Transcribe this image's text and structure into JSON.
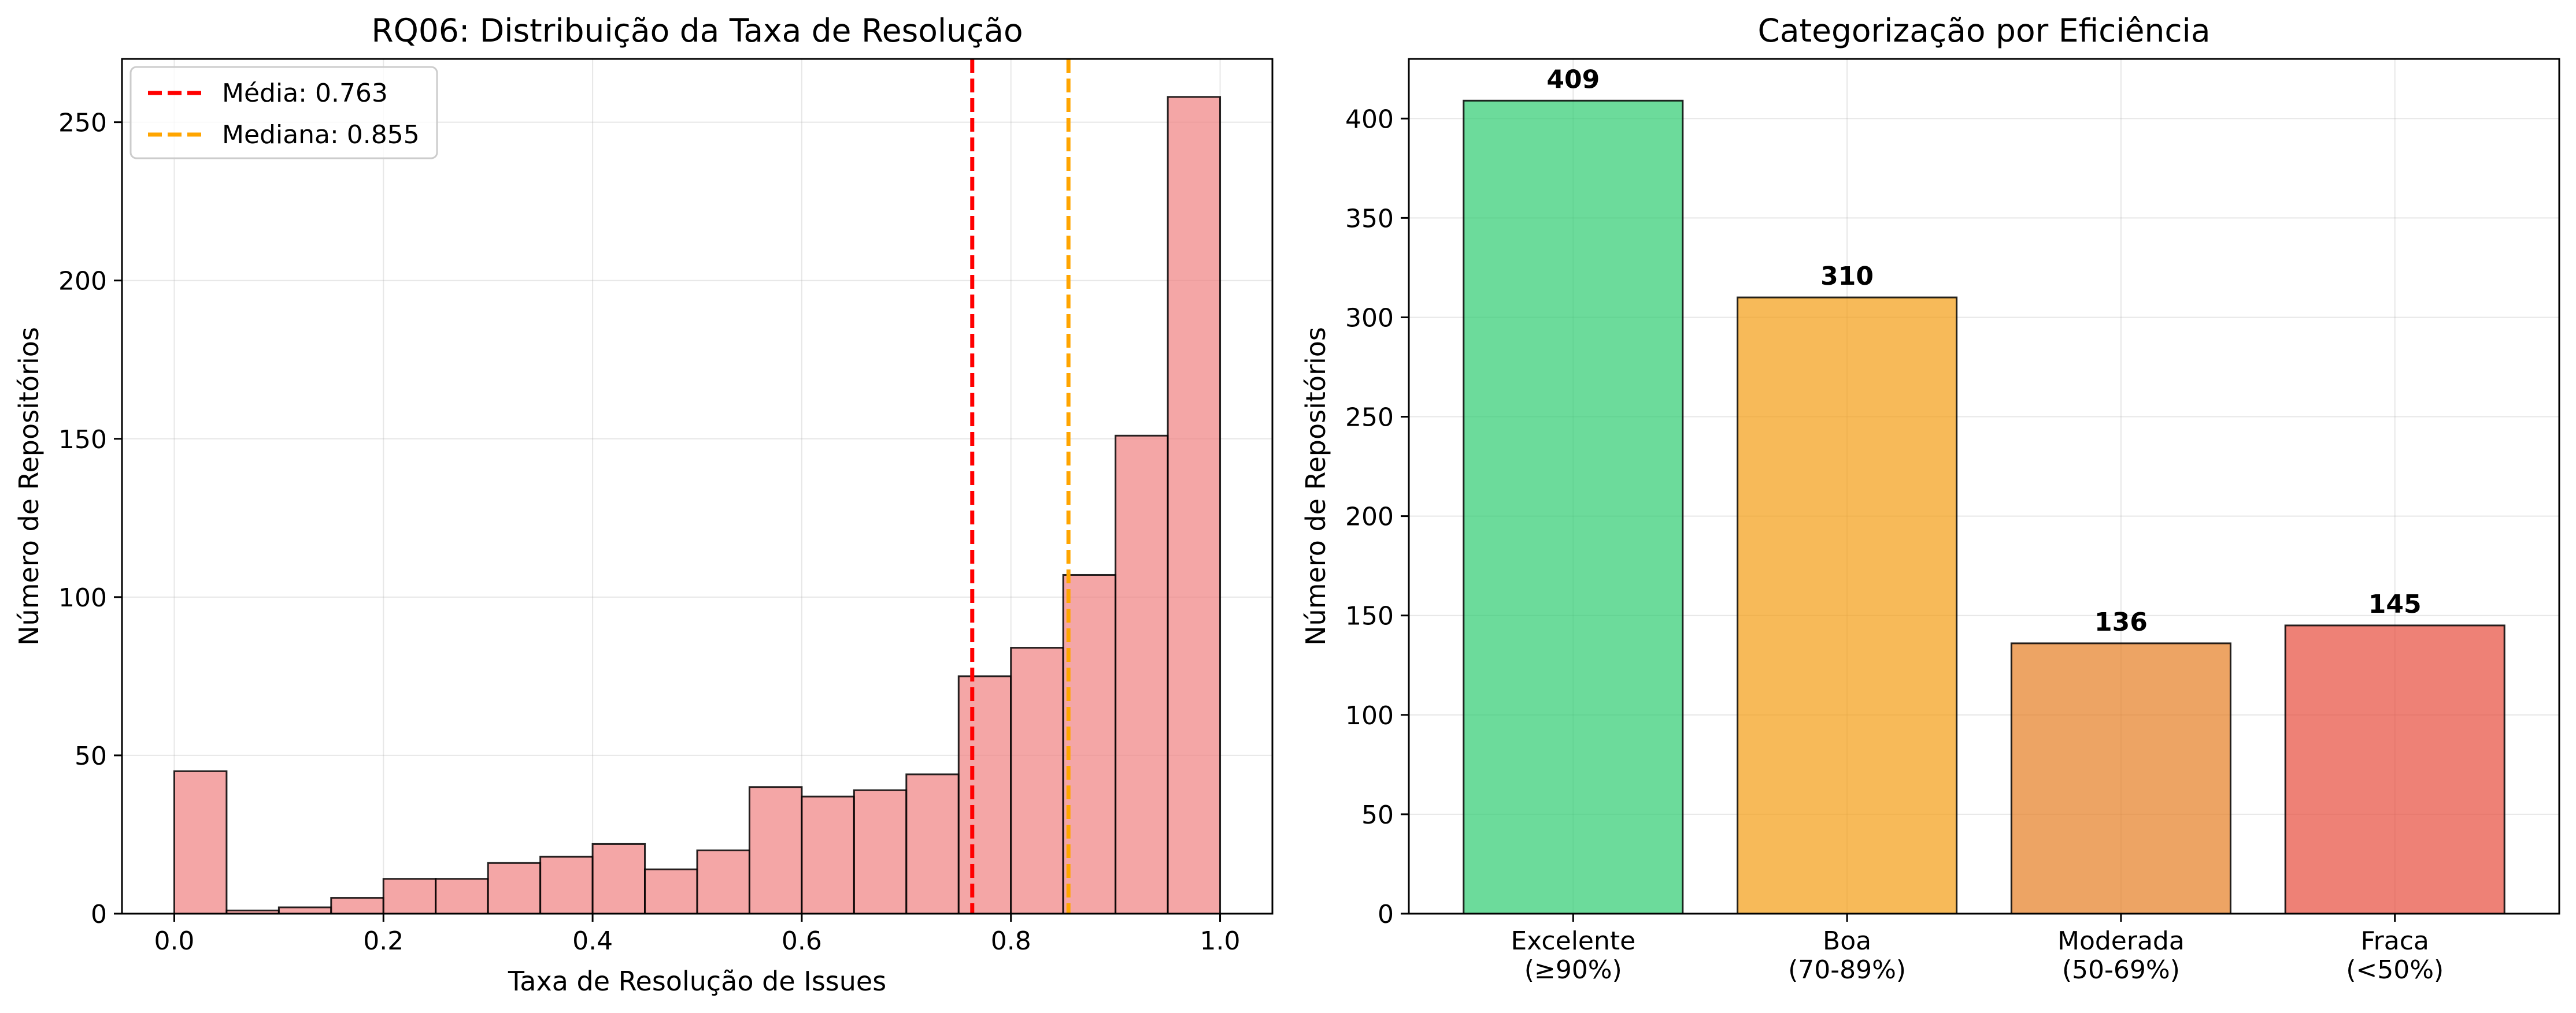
{
  "chart_data": [
    {
      "type": "bar",
      "subtype": "histogram",
      "title": "RQ06: Distribuição da Taxa de Resolução",
      "xlabel": "Taxa de Resolução de Issues",
      "ylabel": "Número de Repositórios",
      "xlim": [
        -0.05,
        1.05
      ],
      "ylim": [
        0,
        270
      ],
      "xticks": [
        "0.0",
        "0.2",
        "0.4",
        "0.6",
        "0.8",
        "1.0"
      ],
      "yticks": [
        "0",
        "50",
        "100",
        "150",
        "200",
        "250"
      ],
      "bin_edges": [
        0.0,
        0.05,
        0.1,
        0.15,
        0.2,
        0.25,
        0.3,
        0.35,
        0.4,
        0.45,
        0.5,
        0.55,
        0.6,
        0.65,
        0.7,
        0.75,
        0.8,
        0.85,
        0.9,
        0.95,
        1.0
      ],
      "values": [
        45,
        1,
        2,
        5,
        11,
        11,
        16,
        18,
        22,
        14,
        20,
        40,
        37,
        39,
        44,
        75,
        84,
        107,
        151,
        258
      ],
      "bar_color": "#f08080",
      "grid": true,
      "legend_position": "top-left",
      "reference_lines": [
        {
          "label": "Média: 0.763",
          "x": 0.763,
          "color": "#ff0000",
          "style": "dashed"
        },
        {
          "label": "Mediana: 0.855",
          "x": 0.855,
          "color": "#ffa500",
          "style": "dashed"
        }
      ]
    },
    {
      "type": "bar",
      "title": "Categorização por Eficiência",
      "xlabel": "",
      "ylabel": "Número de Repositórios",
      "ylim": [
        0,
        430
      ],
      "yticks": [
        "0",
        "50",
        "100",
        "150",
        "200",
        "250",
        "300",
        "350",
        "400"
      ],
      "categories": [
        {
          "name": "Excelente",
          "range": "(≥90%)",
          "value": 409,
          "color": "#2ecc71"
        },
        {
          "name": "Boa",
          "range": "(70-89%)",
          "value": 310,
          "color": "#f39c12"
        },
        {
          "name": "Moderada",
          "range": "(50-69%)",
          "value": 136,
          "color": "#e67e22"
        },
        {
          "name": "Fraca",
          "range": "(<50%)",
          "value": 145,
          "color": "#e74c3c"
        }
      ],
      "grid": true
    }
  ]
}
